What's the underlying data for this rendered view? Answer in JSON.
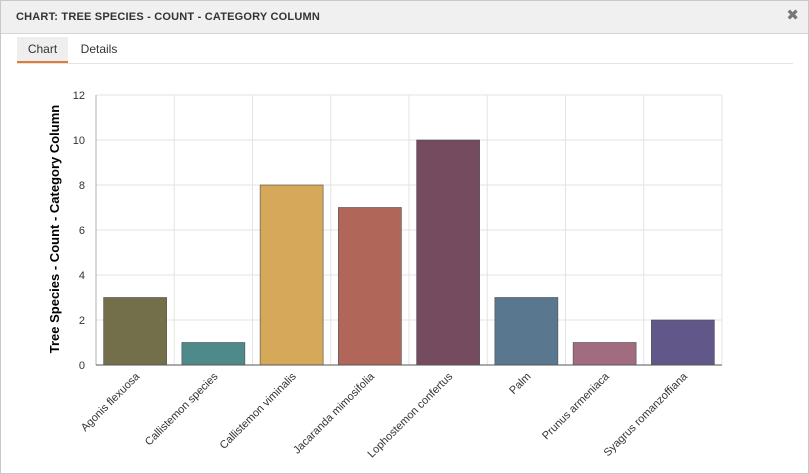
{
  "window": {
    "title": "CHART: TREE SPECIES - COUNT - CATEGORY COLUMN",
    "close_glyph": "✖"
  },
  "tabs": [
    {
      "label": "Chart",
      "active": true
    },
    {
      "label": "Details",
      "active": false
    }
  ],
  "chart_data": {
    "type": "bar",
    "categories": [
      "Agonis flexuosa",
      "Callistemon species",
      "Callistemon viminalis",
      "Jacaranda mimosifolia",
      "Lophostemon confertus",
      "Palm",
      "Prunus armeniaca",
      "Syagrus romanzoffiana"
    ],
    "values": [
      3,
      1,
      8,
      7,
      10,
      3,
      1,
      2
    ],
    "colors": [
      "#746f4b",
      "#4f8a8b",
      "#d6a85a",
      "#b0675a",
      "#754b5f",
      "#5a7790",
      "#a26c80",
      "#615889"
    ],
    "ylabel": "Tree Species - Count - Category Column",
    "xlabel": "",
    "ylim": [
      0,
      12
    ],
    "yticks": [
      0,
      2,
      4,
      6,
      8,
      10,
      12
    ],
    "grid": true
  }
}
